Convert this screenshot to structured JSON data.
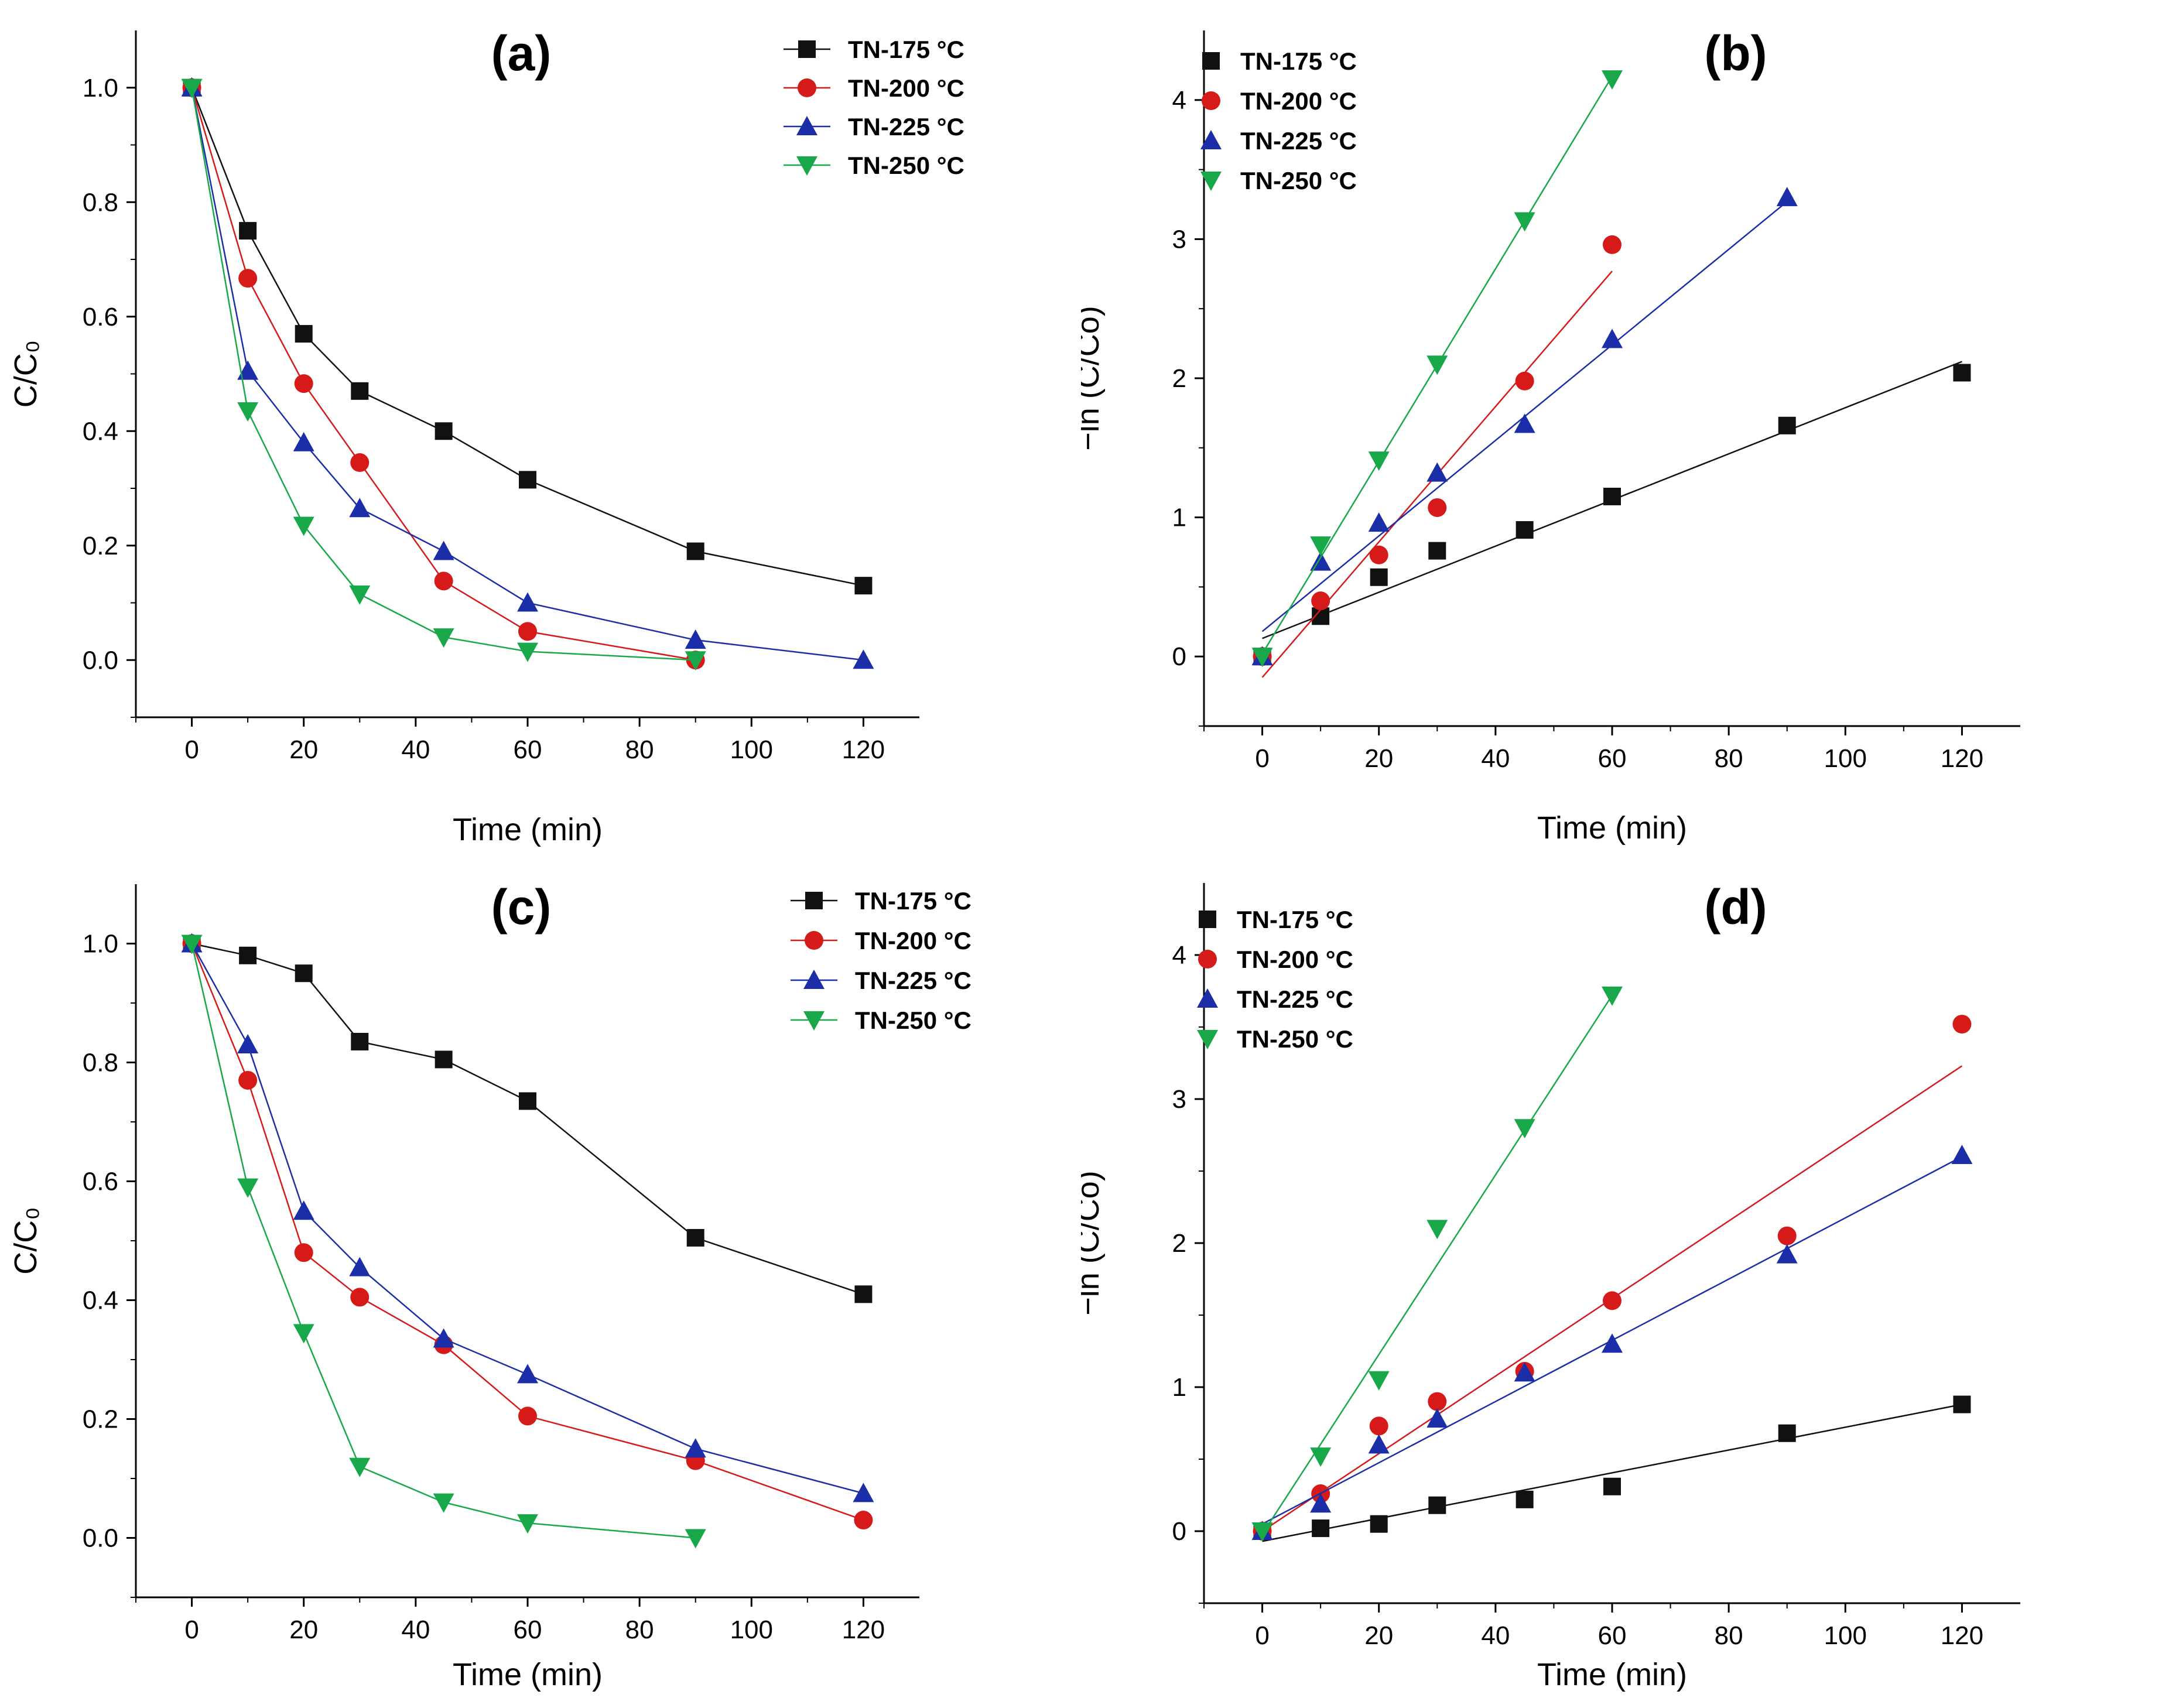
{
  "chart_data": [
    {
      "id": "a",
      "type": "line",
      "panel_label": "(a)",
      "xlabel": "Time (min)",
      "ylabel": "C/C₀",
      "xlim": [
        -10,
        130
      ],
      "ylim": [
        -0.1,
        1.1
      ],
      "xticks": [
        0,
        20,
        40,
        60,
        80,
        100,
        120
      ],
      "yticks": [
        0.0,
        0.2,
        0.4,
        0.6,
        0.8,
        1.0
      ],
      "ytick_format": "1",
      "grid": false,
      "legend": "top-right",
      "legend_lines": true,
      "series": [
        {
          "name": "TN-175 °C",
          "color": "#111111",
          "marker": "square",
          "x": [
            0,
            10,
            20,
            30,
            45,
            60,
            90,
            120
          ],
          "y": [
            1.0,
            0.75,
            0.57,
            0.47,
            0.4,
            0.315,
            0.19,
            0.13
          ]
        },
        {
          "name": "TN-200 °C",
          "color": "#d61a1a",
          "marker": "circle",
          "x": [
            0,
            10,
            20,
            30,
            45,
            60,
            90
          ],
          "y": [
            1.0,
            0.667,
            0.483,
            0.345,
            0.138,
            0.05,
            0.0
          ]
        },
        {
          "name": "TN-225 °C",
          "color": "#1b2ea8",
          "marker": "triangle-up",
          "x": [
            0,
            10,
            20,
            30,
            45,
            60,
            90,
            120
          ],
          "y": [
            1.0,
            0.505,
            0.38,
            0.265,
            0.19,
            0.1,
            0.035,
            0.0
          ]
        },
        {
          "name": "TN-250 °C",
          "color": "#18a84a",
          "marker": "triangle-down",
          "x": [
            0,
            10,
            20,
            30,
            45,
            60,
            90
          ],
          "y": [
            1.0,
            0.435,
            0.235,
            0.115,
            0.04,
            0.015,
            0.0
          ]
        }
      ]
    },
    {
      "id": "b",
      "type": "scatter",
      "panel_label": "(b)",
      "xlabel": "Time (min)",
      "ylabel": "−ln (C/Co)",
      "xlim": [
        -10,
        130
      ],
      "ylim": [
        -0.5,
        4.5
      ],
      "xticks": [
        0,
        20,
        40,
        60,
        80,
        100,
        120
      ],
      "yticks": [
        0,
        1,
        2,
        3,
        4
      ],
      "ytick_format": "0",
      "grid": false,
      "legend": "top-left",
      "legend_lines": false,
      "series": [
        {
          "name": "TN-175 °C",
          "color": "#111111",
          "marker": "square",
          "x": [
            0,
            10,
            20,
            30,
            45,
            60,
            90,
            120
          ],
          "y": [
            0.0,
            0.29,
            0.57,
            0.76,
            0.91,
            1.15,
            1.66,
            2.04
          ],
          "fit": [
            [
              0,
              0.13
            ],
            [
              120,
              2.12
            ]
          ]
        },
        {
          "name": "TN-200 °C",
          "color": "#d61a1a",
          "marker": "circle",
          "x": [
            0,
            10,
            20,
            30,
            45,
            60
          ],
          "y": [
            0.0,
            0.4,
            0.73,
            1.07,
            1.98,
            2.96
          ],
          "fit": [
            [
              0,
              -0.15
            ],
            [
              60,
              2.77
            ]
          ]
        },
        {
          "name": "TN-225 °C",
          "color": "#1b2ea8",
          "marker": "triangle-up",
          "x": [
            0,
            10,
            20,
            30,
            45,
            60,
            90
          ],
          "y": [
            0.0,
            0.68,
            0.96,
            1.32,
            1.67,
            2.28,
            3.3
          ],
          "fit": [
            [
              0,
              0.18
            ],
            [
              90,
              3.27
            ]
          ]
        },
        {
          "name": "TN-250 °C",
          "color": "#18a84a",
          "marker": "triangle-down",
          "x": [
            0,
            10,
            20,
            30,
            45,
            60
          ],
          "y": [
            0.0,
            0.8,
            1.41,
            2.1,
            3.13,
            4.15
          ],
          "fit": [
            [
              0,
              0.02
            ],
            [
              60,
              4.17
            ]
          ]
        }
      ]
    },
    {
      "id": "c",
      "type": "line",
      "panel_label": "(c)",
      "xlabel": "Time (min)",
      "ylabel": "C/C₀",
      "xlim": [
        -10,
        130
      ],
      "ylim": [
        -0.1,
        1.1
      ],
      "xticks": [
        0,
        20,
        40,
        60,
        80,
        100,
        120
      ],
      "yticks": [
        0.0,
        0.2,
        0.4,
        0.6,
        0.8,
        1.0
      ],
      "ytick_format": "1",
      "grid": false,
      "legend": "top-right",
      "legend_lines": true,
      "series": [
        {
          "name": "TN-175 °C",
          "color": "#111111",
          "marker": "square",
          "x": [
            0,
            10,
            20,
            30,
            45,
            60,
            90,
            120
          ],
          "y": [
            1.0,
            0.98,
            0.95,
            0.835,
            0.805,
            0.735,
            0.505,
            0.41
          ]
        },
        {
          "name": "TN-200 °C",
          "color": "#d61a1a",
          "marker": "circle",
          "x": [
            0,
            10,
            20,
            30,
            45,
            60,
            90,
            120
          ],
          "y": [
            1.0,
            0.77,
            0.48,
            0.405,
            0.325,
            0.205,
            0.13,
            0.03
          ]
        },
        {
          "name": "TN-225 °C",
          "color": "#1b2ea8",
          "marker": "triangle-up",
          "x": [
            0,
            10,
            20,
            30,
            45,
            60,
            90,
            120
          ],
          "y": [
            1.0,
            0.83,
            0.55,
            0.455,
            0.335,
            0.275,
            0.15,
            0.075
          ]
        },
        {
          "name": "TN-250 °C",
          "color": "#18a84a",
          "marker": "triangle-down",
          "x": [
            0,
            10,
            20,
            30,
            45,
            60,
            90
          ],
          "y": [
            1.0,
            0.59,
            0.345,
            0.12,
            0.06,
            0.025,
            0.0
          ]
        }
      ]
    },
    {
      "id": "d",
      "type": "scatter",
      "panel_label": "(d)",
      "xlabel": "Time (min)",
      "ylabel": "−ln (C/Co)",
      "xlim": [
        -10,
        130
      ],
      "ylim": [
        -0.5,
        4.5
      ],
      "xticks": [
        0,
        20,
        40,
        60,
        80,
        100,
        120
      ],
      "yticks": [
        0,
        1,
        2,
        3,
        4
      ],
      "ytick_format": "0",
      "grid": false,
      "legend": "top-left",
      "legend_lines": false,
      "series": [
        {
          "name": "TN-175 °C",
          "color": "#111111",
          "marker": "square",
          "x": [
            0,
            10,
            20,
            30,
            45,
            60,
            90,
            120
          ],
          "y": [
            0.0,
            0.02,
            0.05,
            0.18,
            0.22,
            0.31,
            0.68,
            0.88
          ],
          "fit": [
            [
              0,
              -0.07
            ],
            [
              120,
              0.88
            ]
          ]
        },
        {
          "name": "TN-200 °C",
          "color": "#d61a1a",
          "marker": "circle",
          "x": [
            0,
            10,
            20,
            30,
            45,
            60,
            90,
            120
          ],
          "y": [
            0.0,
            0.26,
            0.73,
            0.9,
            1.11,
            1.6,
            2.05,
            3.52
          ],
          "fit": [
            [
              0,
              0.0
            ],
            [
              120,
              3.23
            ]
          ]
        },
        {
          "name": "TN-225 °C",
          "color": "#1b2ea8",
          "marker": "triangle-up",
          "x": [
            0,
            10,
            20,
            30,
            45,
            60,
            90,
            120
          ],
          "y": [
            0.0,
            0.19,
            0.6,
            0.78,
            1.1,
            1.3,
            1.92,
            2.61
          ],
          "fit": [
            [
              0,
              0.05
            ],
            [
              120,
              2.6
            ]
          ]
        },
        {
          "name": "TN-250 °C",
          "color": "#18a84a",
          "marker": "triangle-down",
          "x": [
            0,
            10,
            20,
            30,
            45,
            60
          ],
          "y": [
            0.0,
            0.52,
            1.05,
            2.1,
            2.8,
            3.72
          ],
          "fit": [
            [
              0,
              -0.02
            ],
            [
              60,
              3.72
            ]
          ]
        }
      ]
    }
  ]
}
